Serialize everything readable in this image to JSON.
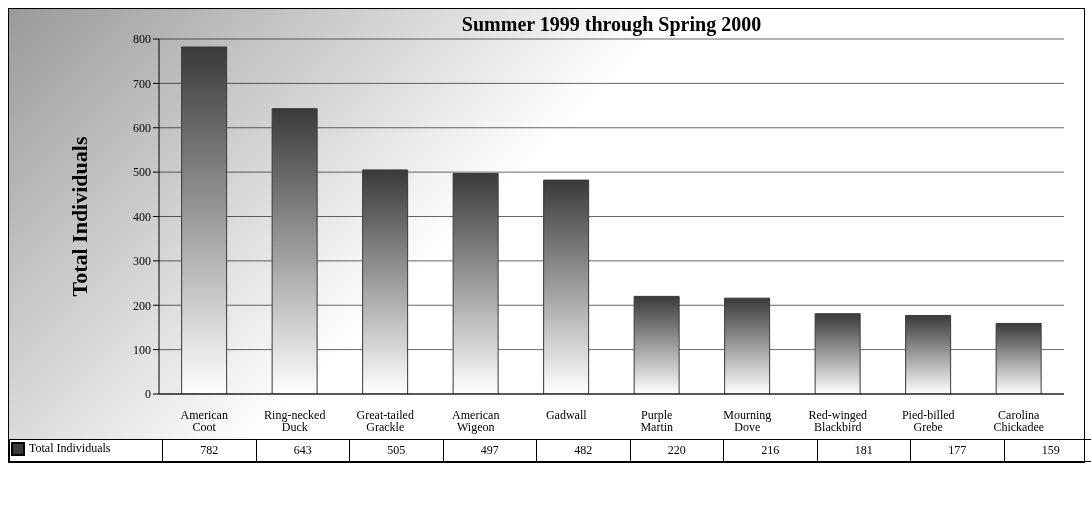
{
  "chart_data": {
    "type": "bar",
    "title": "Summer 1999 through Spring 2000",
    "ylabel": "Total Individuals",
    "categories": [
      "American Coot",
      "Ring-necked Duck",
      "Great-tailed Grackle",
      "American Wigeon",
      "Gadwall",
      "Purple Martin",
      "Mourning Dove",
      "Red-winged Blackbird",
      "Pied-billed Grebe",
      "Carolina Chickadee"
    ],
    "series": [
      {
        "name": "Total Individuals",
        "color": "#3a3a3a",
        "values": [
          782,
          643,
          505,
          497,
          482,
          220,
          216,
          181,
          177,
          159
        ]
      }
    ],
    "ylim": [
      0,
      800
    ],
    "yticks": [
      0,
      100,
      200,
      300,
      400,
      500,
      600,
      700,
      800
    ],
    "grid": "y",
    "legend": "bottom left",
    "data_labels": true
  }
}
